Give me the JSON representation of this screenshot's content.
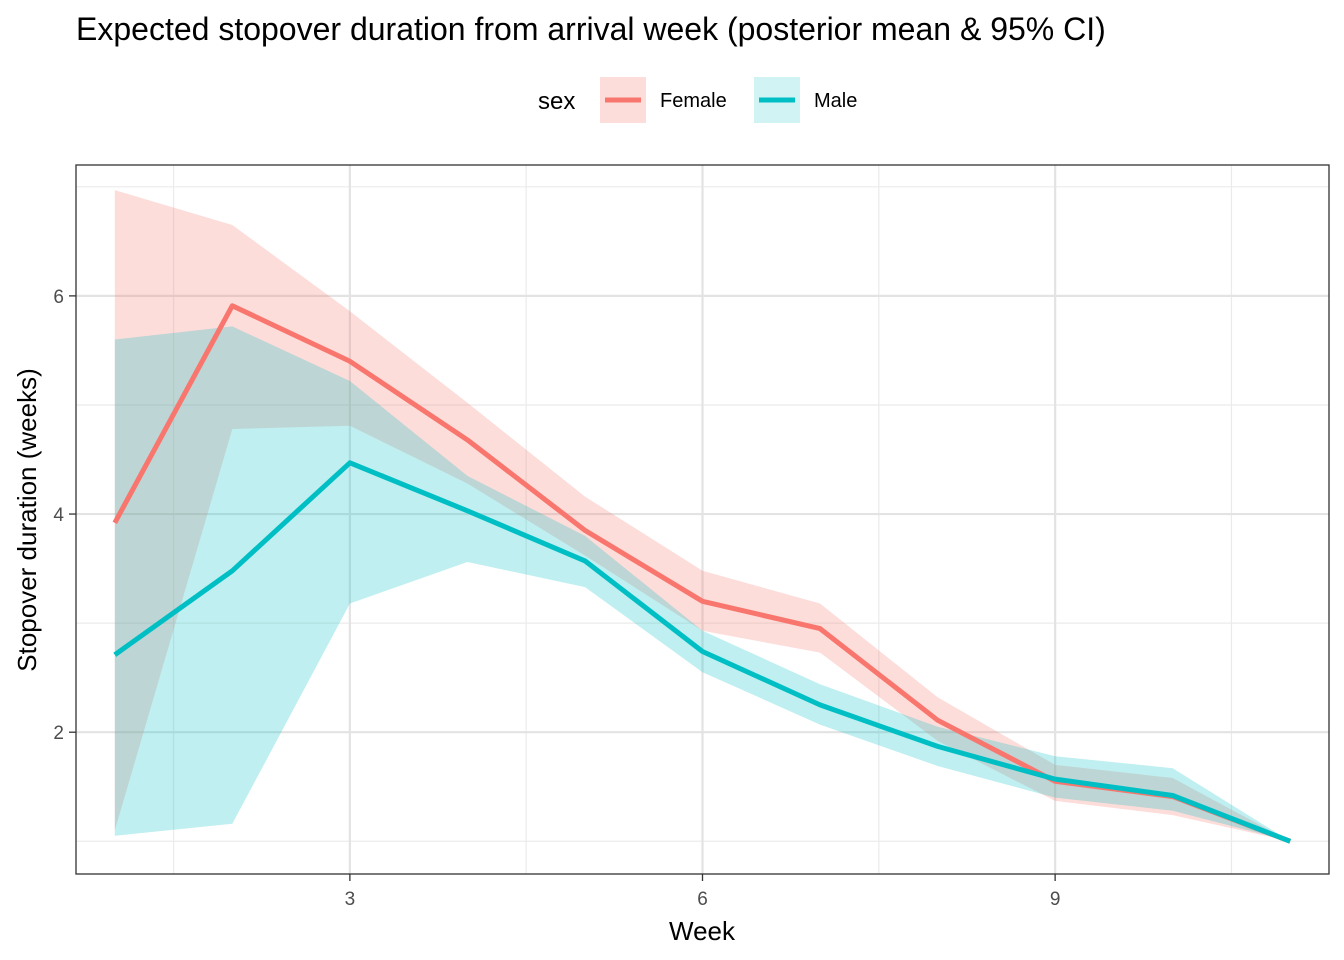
{
  "chart_data": {
    "type": "line",
    "title": "Expected stopover duration from arrival week (posterior mean & 95% CI)",
    "xlabel": "Week",
    "ylabel": "Stopover duration (weeks)",
    "xlim": [
      0.67,
      11.33
    ],
    "ylim": [
      0.7,
      7.2
    ],
    "xticks": [
      3,
      6,
      9
    ],
    "yticks": [
      2,
      4,
      6
    ],
    "grid": true,
    "legend": {
      "title": "sex",
      "position": "top"
    },
    "x": [
      1,
      2,
      3,
      4,
      5,
      6,
      7,
      8,
      9,
      10,
      11
    ],
    "series": [
      {
        "name": "Female",
        "color": "#F8766D",
        "values": [
          3.92,
          5.91,
          5.4,
          4.68,
          3.85,
          3.2,
          2.95,
          2.11,
          1.55,
          1.41,
          1.0
        ],
        "lower": [
          1.1,
          4.78,
          4.81,
          4.28,
          3.62,
          2.93,
          2.73,
          1.92,
          1.37,
          1.24,
          1.0
        ],
        "upper": [
          6.97,
          6.65,
          5.86,
          5.02,
          4.16,
          3.48,
          3.18,
          2.32,
          1.7,
          1.58,
          1.0
        ]
      },
      {
        "name": "Male",
        "color": "#00BFC4",
        "values": [
          2.71,
          3.48,
          4.47,
          4.03,
          3.57,
          2.74,
          2.25,
          1.87,
          1.57,
          1.42,
          1.0
        ],
        "lower": [
          1.05,
          1.16,
          3.18,
          3.56,
          3.33,
          2.55,
          2.07,
          1.69,
          1.4,
          1.28,
          1.0
        ],
        "upper": [
          5.6,
          5.72,
          5.22,
          4.35,
          3.8,
          2.93,
          2.44,
          2.05,
          1.78,
          1.67,
          1.0
        ]
      }
    ]
  }
}
